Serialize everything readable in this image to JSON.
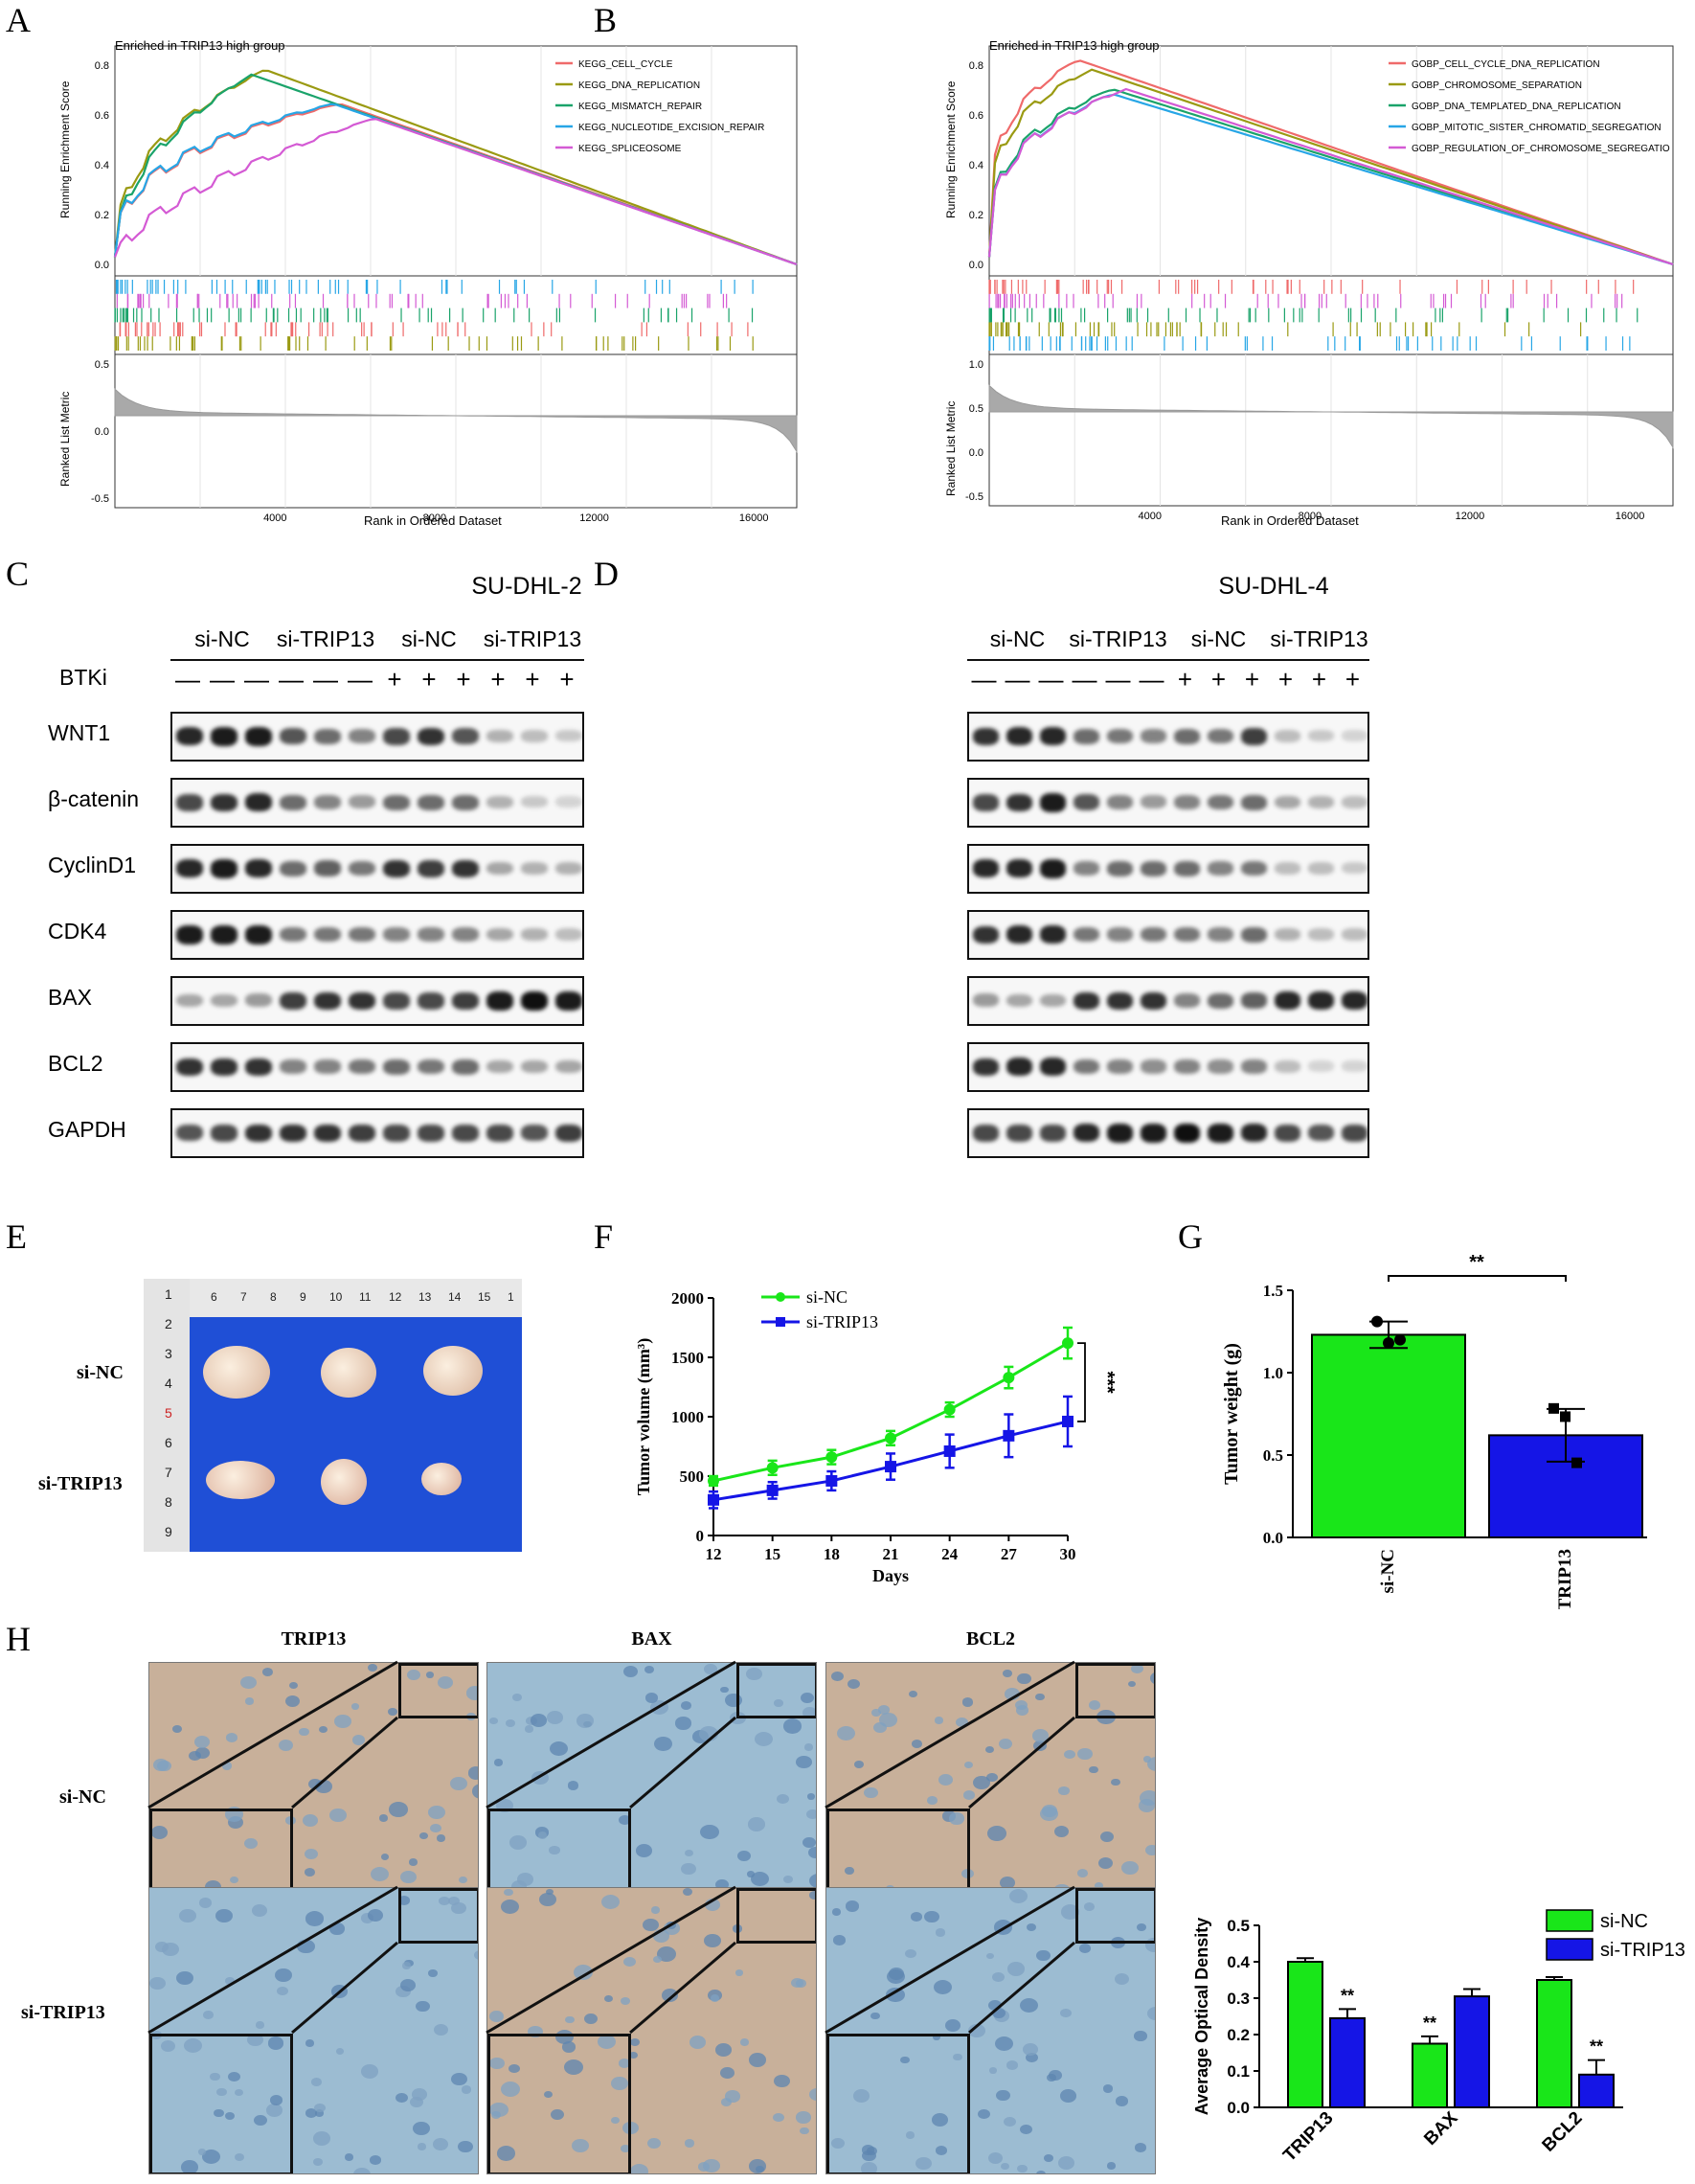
{
  "panels": {
    "A": "A",
    "B": "B",
    "C": "C",
    "D": "D",
    "E": "E",
    "F": "F",
    "G": "G",
    "H": "H"
  },
  "colors": {
    "gsea": [
      "#ef6a6a",
      "#9a9a12",
      "#1aa36a",
      "#27a6e6",
      "#d45ad4"
    ],
    "green": "#19e619",
    "blue": "#1515e6",
    "blot_bg": "#f7f7f7",
    "tissue_brown": "#c9a07a",
    "tissue_blue": "#7aa6c7"
  },
  "gsea_a": {
    "title": "Enriched in TRIP13 high group",
    "ylabel_top": "Running Enrichment Score",
    "ylabel_bottom": "Ranked List Metric",
    "xlabel": "Rank in Ordered Dataset",
    "legend": [
      "KEGG_CELL_CYCLE",
      "KEGG_DNA_REPLICATION",
      "KEGG_MISMATCH_REPAIR",
      "KEGG_NUCLEOTIDE_EXCISION_REPAIR",
      "KEGG_SPLICEOSOME"
    ],
    "y_ticks": [
      "0.8",
      "0.6",
      "0.4",
      "0.2",
      "0.0"
    ],
    "metric_ticks": [
      "0.5",
      "0.0",
      "-0.5"
    ],
    "x_ticks": [
      "4000",
      "8000",
      "12000",
      "16000"
    ]
  },
  "gsea_b": {
    "title": "Enriched in TRIP13 high group",
    "ylabel_top": "Running Enrichment Score",
    "ylabel_bottom": "Ranked List Metric",
    "xlabel": "Rank in Ordered Dataset",
    "legend": [
      "GOBP_CELL_CYCLE_DNA_REPLICATION",
      "GOBP_CHROMOSOME_SEPARATION",
      "GOBP_DNA_TEMPLATED_DNA_REPLICATION",
      "GOBP_MITOTIC_SISTER_CHROMATID_SEGREGATION",
      "GOBP_REGULATION_OF_CHROMOSOME_SEGREGATIO"
    ],
    "y_ticks": [
      "0.8",
      "0.6",
      "0.4",
      "0.2",
      "0.0"
    ],
    "metric_ticks": [
      "1.0",
      "0.5",
      "0.0",
      "-0.5"
    ],
    "x_ticks": [
      "4000",
      "8000",
      "12000",
      "16000"
    ]
  },
  "western_c": {
    "title": "SU-DHL-2",
    "groups": [
      "si-NC",
      "si-TRIP13",
      "si-NC",
      "si-TRIP13"
    ],
    "btki_label": "BTKi",
    "btki": [
      "—",
      "—",
      "—",
      "—",
      "—",
      "—",
      "+",
      "+",
      "+",
      "+",
      "+",
      "+"
    ],
    "proteins": [
      "WNT1",
      "β-catenin",
      "CyclinD1",
      "CDK4",
      "BAX",
      "BCL2",
      "GAPDH"
    ]
  },
  "western_d": {
    "title": "SU-DHL-4",
    "groups": [
      "si-NC",
      "si-TRIP13",
      "si-NC",
      "si-TRIP13"
    ],
    "btki": [
      "—",
      "—",
      "—",
      "—",
      "—",
      "—",
      "+",
      "+",
      "+",
      "+",
      "+",
      "+"
    ]
  },
  "tumor_photo": {
    "row_labels": [
      "si-NC",
      "si-TRIP13"
    ],
    "ruler_top": [
      "6",
      "7",
      "8",
      "9",
      "10",
      "11",
      "12",
      "13",
      "14",
      "15",
      "1"
    ],
    "ruler_side": [
      "1",
      "2",
      "3",
      "4",
      "5",
      "6",
      "7",
      "8",
      "9"
    ]
  },
  "ihc": {
    "columns": [
      "TRIP13",
      "BAX",
      "BCL2"
    ],
    "rows": [
      "si-NC",
      "si-TRIP13"
    ]
  },
  "chart_data": [
    {
      "type": "line",
      "panel": "F",
      "x": [
        12,
        15,
        18,
        21,
        24,
        27,
        30
      ],
      "xlabel": "Days",
      "ylabel": "Tumor volume (mm³)",
      "ylim": [
        0,
        2000
      ],
      "yticks": [
        0,
        500,
        1000,
        1500,
        2000
      ],
      "series": [
        {
          "name": "si-NC",
          "values": [
            460,
            570,
            660,
            820,
            1060,
            1330,
            1620
          ],
          "errors": [
            40,
            60,
            60,
            60,
            60,
            90,
            130
          ]
        },
        {
          "name": "si-TRIP13",
          "values": [
            300,
            380,
            460,
            580,
            710,
            840,
            960
          ],
          "errors": [
            70,
            70,
            80,
            110,
            140,
            180,
            210
          ]
        }
      ],
      "annotation": "***",
      "legend_position": "top-left"
    },
    {
      "type": "bar",
      "panel": "G",
      "categories": [
        "si-NC",
        "si-TRIP13"
      ],
      "values": [
        1.23,
        0.62
      ],
      "errors": [
        0.08,
        0.16
      ],
      "points": [
        [
          1.31,
          1.18,
          1.2
        ],
        [
          0.78,
          0.73,
          0.45
        ]
      ],
      "ylabel": "Tumor weight (g)",
      "ylim": [
        0,
        1.5
      ],
      "yticks": [
        "0.0",
        "0.5",
        "1.0",
        "1.5"
      ],
      "annotation": "**"
    },
    {
      "type": "bar",
      "panel": "H",
      "categories": [
        "TRIP13",
        "BAX",
        "BCL2"
      ],
      "series": [
        {
          "name": "si-NC",
          "values": [
            0.4,
            0.175,
            0.35
          ],
          "errors": [
            0.01,
            0.02,
            0.008
          ]
        },
        {
          "name": "si-TRIP13",
          "values": [
            0.245,
            0.305,
            0.09
          ],
          "errors": [
            0.025,
            0.02,
            0.04
          ]
        }
      ],
      "significance": [
        "**",
        "**",
        "**"
      ],
      "ylabel": "Average Optical Density",
      "ylim": [
        0,
        0.5
      ],
      "yticks": [
        "0.0",
        "0.1",
        "0.2",
        "0.3",
        "0.4",
        "0.5"
      ],
      "legend_position": "top-right"
    }
  ]
}
